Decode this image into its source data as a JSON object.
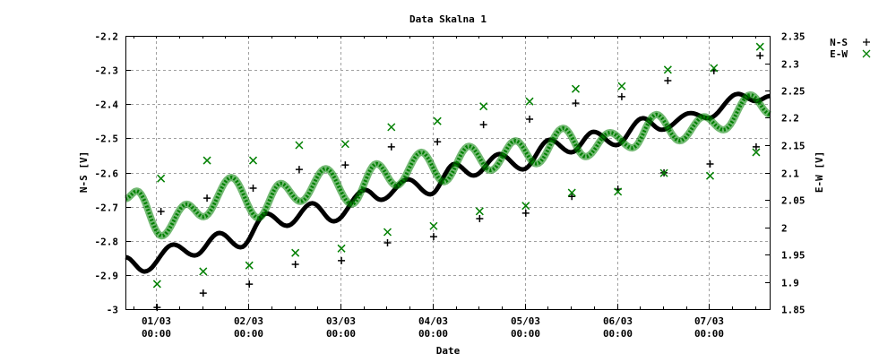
{
  "chart_data": {
    "type": "scatter",
    "title": "Data Skalna 1",
    "xlabel": "Date",
    "ylabel": "N-S [V]",
    "y2label": "E-W [V]",
    "xlim": [
      "28/02 16:00",
      "07/03 16:00"
    ],
    "ylim": [
      -3,
      -2.2
    ],
    "y2lim": [
      1.85,
      2.35
    ],
    "grid": true,
    "legend_position": "top-right-outside",
    "x_ticks": [
      {
        "at": "01/03 00:00",
        "line1": "01/03",
        "line2": "00:00"
      },
      {
        "at": "02/03 00:00",
        "line1": "02/03",
        "line2": "00:00"
      },
      {
        "at": "03/03 00:00",
        "line1": "03/03",
        "line2": "00:00"
      },
      {
        "at": "04/03 00:00",
        "line1": "04/03",
        "line2": "00:00"
      },
      {
        "at": "05/03 00:00",
        "line1": "05/03",
        "line2": "00:00"
      },
      {
        "at": "06/03 00:00",
        "line1": "06/03",
        "line2": "00:00"
      },
      {
        "at": "07/03 00:00",
        "line1": "07/03",
        "line2": "00:00"
      }
    ],
    "y_ticks": [
      "-3",
      "-2.9",
      "-2.8",
      "-2.7",
      "-2.6",
      "-2.5",
      "-2.4",
      "-2.3",
      "-2.2"
    ],
    "y2_ticks": [
      "1.85",
      "1.9",
      "1.95",
      "2",
      "2.05",
      "2.1",
      "2.15",
      "2.2",
      "2.25",
      "2.3",
      "2.35"
    ],
    "series": [
      {
        "name": "N-S",
        "axis": "y",
        "marker": "plus",
        "color": "#000000",
        "curve": [
          [
            "28/02 16:00",
            -2.848
          ],
          [
            "28/02 21:00",
            -2.89
          ],
          [
            "01/03 04:30",
            -2.811
          ],
          [
            "01/03 10:00",
            -2.843
          ],
          [
            "01/03 16:30",
            -2.777
          ],
          [
            "01/03 22:00",
            -2.819
          ],
          [
            "02/03 04:45",
            -2.72
          ],
          [
            "02/03 10:05",
            -2.756
          ],
          [
            "02/03 16:40",
            -2.69
          ],
          [
            "02/03 22:15",
            -2.743
          ],
          [
            "03/03 06:25",
            -2.651
          ],
          [
            "03/03 10:35",
            -2.68
          ],
          [
            "03/03 17:35",
            -2.62
          ],
          [
            "03/03 23:25",
            -2.664
          ],
          [
            "04/03 05:45",
            -2.575
          ],
          [
            "04/03 10:40",
            -2.609
          ],
          [
            "04/03 17:25",
            -2.546
          ],
          [
            "04/03 23:30",
            -2.591
          ],
          [
            "05/03 06:30",
            -2.504
          ],
          [
            "05/03 12:05",
            -2.541
          ],
          [
            "05/03 17:55",
            -2.481
          ],
          [
            "05/03 23:45",
            -2.52
          ],
          [
            "06/03 06:45",
            -2.441
          ],
          [
            "06/03 11:40",
            -2.475
          ],
          [
            "06/03 19:10",
            -2.426
          ],
          [
            "06/03 23:50",
            -2.441
          ],
          [
            "07/03 07:30",
            -2.37
          ],
          [
            "07/03 12:10",
            -2.391
          ],
          [
            "07/03 16:00",
            -2.376
          ]
        ],
        "outliers": [
          [
            "01/03 00:15",
            -2.995
          ],
          [
            "01/03 01:15",
            -2.714
          ],
          [
            "01/03 12:15",
            -2.953
          ],
          [
            "01/03 13:15",
            -2.675
          ],
          [
            "02/03 00:15",
            -2.927
          ],
          [
            "02/03 01:15",
            -2.646
          ],
          [
            "02/03 12:15",
            -2.869
          ],
          [
            "02/03 13:15",
            -2.591
          ],
          [
            "03/03 00:15",
            -2.858
          ],
          [
            "03/03 01:15",
            -2.578
          ],
          [
            "03/03 12:15",
            -2.806
          ],
          [
            "03/03 13:15",
            -2.525
          ],
          [
            "04/03 00:15",
            -2.788
          ],
          [
            "04/03 01:15",
            -2.51
          ],
          [
            "04/03 12:15",
            -2.735
          ],
          [
            "04/03 13:15",
            -2.46
          ],
          [
            "05/03 00:15",
            -2.719
          ],
          [
            "05/03 01:15",
            -2.444
          ],
          [
            "05/03 12:15",
            -2.67
          ],
          [
            "05/03 13:15",
            -2.397
          ],
          [
            "06/03 00:15",
            -2.649
          ],
          [
            "06/03 01:15",
            -2.378
          ],
          [
            "06/03 12:15",
            -2.601
          ],
          [
            "06/03 13:15",
            -2.331
          ],
          [
            "07/03 00:15",
            -2.575
          ],
          [
            "07/03 01:15",
            -2.302
          ],
          [
            "07/03 12:15",
            -2.525
          ],
          [
            "07/03 13:15",
            -2.258
          ]
        ]
      },
      {
        "name": "E-W",
        "axis": "y2",
        "marker": "cross",
        "color": "#008000",
        "curve": [
          [
            "28/02 16:00",
            2.052
          ],
          [
            "28/02 19:00",
            2.066
          ],
          [
            "01/03 01:25",
            1.984
          ],
          [
            "01/03 07:55",
            2.042
          ],
          [
            "01/03 12:20",
            2.019
          ],
          [
            "01/03 19:35",
            2.091
          ],
          [
            "02/03 02:35",
            2.017
          ],
          [
            "02/03 08:25",
            2.08
          ],
          [
            "02/03 13:35",
            2.047
          ],
          [
            "02/03 20:10",
            2.107
          ],
          [
            "03/03 02:55",
            2.042
          ],
          [
            "03/03 09:25",
            2.116
          ],
          [
            "03/03 14:35",
            2.076
          ],
          [
            "03/03 21:05",
            2.137
          ],
          [
            "04/03 02:55",
            2.083
          ],
          [
            "04/03 09:30",
            2.148
          ],
          [
            "04/03 15:05",
            2.104
          ],
          [
            "04/03 21:35",
            2.158
          ],
          [
            "05/03 03:00",
            2.116
          ],
          [
            "05/03 10:00",
            2.181
          ],
          [
            "05/03 15:50",
            2.129
          ],
          [
            "05/03 22:10",
            2.173
          ],
          [
            "06/03 04:00",
            2.145
          ],
          [
            "06/03 10:15",
            2.206
          ],
          [
            "06/03 16:20",
            2.158
          ],
          [
            "06/03 22:40",
            2.202
          ],
          [
            "07/03 03:45",
            2.178
          ],
          [
            "07/03 10:45",
            2.242
          ],
          [
            "07/03 16:00",
            2.206
          ]
        ],
        "outliers": [
          [
            "01/03 00:15",
            1.896
          ],
          [
            "01/03 01:15",
            2.089
          ],
          [
            "01/03 12:15",
            1.919
          ],
          [
            "01/03 13:15",
            2.122
          ],
          [
            "02/03 00:15",
            1.93
          ],
          [
            "02/03 01:15",
            2.122
          ],
          [
            "02/03 12:15",
            1.953
          ],
          [
            "02/03 13:15",
            2.15
          ],
          [
            "03/03 00:15",
            1.961
          ],
          [
            "03/03 01:15",
            2.152
          ],
          [
            "03/03 12:15",
            1.991
          ],
          [
            "03/03 13:15",
            2.183
          ],
          [
            "04/03 00:15",
            2.002
          ],
          [
            "04/03 01:15",
            2.194
          ],
          [
            "04/03 12:15",
            2.029
          ],
          [
            "04/03 13:15",
            2.221
          ],
          [
            "05/03 00:15",
            2.039
          ],
          [
            "05/03 01:15",
            2.23
          ],
          [
            "05/03 12:15",
            2.063
          ],
          [
            "05/03 13:15",
            2.253
          ],
          [
            "06/03 00:15",
            2.065
          ],
          [
            "06/03 01:15",
            2.258
          ],
          [
            "06/03 12:15",
            2.099
          ],
          [
            "06/03 13:15",
            2.288
          ],
          [
            "07/03 00:15",
            2.094
          ],
          [
            "07/03 01:15",
            2.291
          ],
          [
            "07/03 12:15",
            2.137
          ],
          [
            "07/03 13:15",
            2.33
          ]
        ]
      }
    ]
  }
}
